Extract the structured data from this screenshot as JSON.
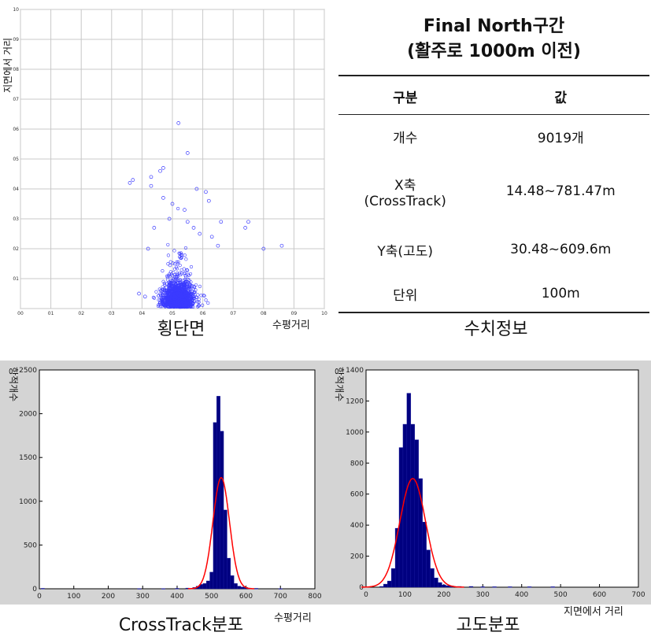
{
  "chart_data": [
    {
      "type": "scatter",
      "xlabel": "수평거리",
      "ylabel": "지면에서 거리",
      "caption": "횡단면",
      "xlim": [
        0,
        1.0
      ],
      "ylim": [
        0,
        1.0
      ],
      "xticks": [
        "00",
        "01",
        "02",
        "03",
        "04",
        "05",
        "06",
        "07",
        "08",
        "09",
        "10"
      ],
      "yticks": [
        "",
        "01",
        "02",
        "03",
        "04",
        "05",
        "06",
        "07",
        "08",
        "09",
        "10"
      ],
      "grid": true,
      "marker_color": "#3b3bff",
      "cluster": {
        "x_mean": 0.52,
        "y_mean": 0.06,
        "x_sd": 0.025,
        "y_sd": 0.035,
        "n": 1400
      },
      "outliers": [
        {
          "x": 0.52,
          "y": 0.62
        },
        {
          "x": 0.55,
          "y": 0.52
        },
        {
          "x": 0.47,
          "y": 0.47
        },
        {
          "x": 0.46,
          "y": 0.46
        },
        {
          "x": 0.43,
          "y": 0.44
        },
        {
          "x": 0.37,
          "y": 0.43
        },
        {
          "x": 0.36,
          "y": 0.42
        },
        {
          "x": 0.43,
          "y": 0.41
        },
        {
          "x": 0.58,
          "y": 0.4
        },
        {
          "x": 0.61,
          "y": 0.39
        },
        {
          "x": 0.5,
          "y": 0.35
        },
        {
          "x": 0.47,
          "y": 0.37
        },
        {
          "x": 0.54,
          "y": 0.33
        },
        {
          "x": 0.62,
          "y": 0.36
        },
        {
          "x": 0.66,
          "y": 0.29
        },
        {
          "x": 0.74,
          "y": 0.27
        },
        {
          "x": 0.75,
          "y": 0.29
        },
        {
          "x": 0.8,
          "y": 0.2
        },
        {
          "x": 0.86,
          "y": 0.21
        },
        {
          "x": 0.57,
          "y": 0.27
        },
        {
          "x": 0.59,
          "y": 0.25
        },
        {
          "x": 0.49,
          "y": 0.3
        },
        {
          "x": 0.55,
          "y": 0.29
        },
        {
          "x": 0.63,
          "y": 0.24
        },
        {
          "x": 0.65,
          "y": 0.21
        },
        {
          "x": 0.44,
          "y": 0.27
        },
        {
          "x": 0.42,
          "y": 0.2
        },
        {
          "x": 0.39,
          "y": 0.05
        },
        {
          "x": 0.41,
          "y": 0.04
        }
      ]
    },
    {
      "type": "bar",
      "caption": "CrossTrack분포",
      "xlabel": "수평거리",
      "ylabel": "항적개수",
      "xlim": [
        0,
        800
      ],
      "ylim": [
        0,
        2500
      ],
      "xticks": [
        "0",
        "100",
        "200",
        "300",
        "400",
        "500",
        "600",
        "700",
        "800"
      ],
      "yticks": [
        "0",
        "500",
        "1000",
        "1500",
        "2000",
        "2500"
      ],
      "bin_width": 10,
      "bins": [
        {
          "x": 10,
          "value": 5
        },
        {
          "x": 290,
          "value": 3
        },
        {
          "x": 360,
          "value": 3
        },
        {
          "x": 400,
          "value": 5
        },
        {
          "x": 430,
          "value": 8
        },
        {
          "x": 450,
          "value": 15
        },
        {
          "x": 460,
          "value": 30
        },
        {
          "x": 470,
          "value": 50
        },
        {
          "x": 480,
          "value": 60
        },
        {
          "x": 490,
          "value": 90
        },
        {
          "x": 500,
          "value": 190
        },
        {
          "x": 510,
          "value": 1900
        },
        {
          "x": 520,
          "value": 2200
        },
        {
          "x": 530,
          "value": 1800
        },
        {
          "x": 540,
          "value": 900
        },
        {
          "x": 550,
          "value": 350
        },
        {
          "x": 560,
          "value": 150
        },
        {
          "x": 570,
          "value": 60
        },
        {
          "x": 580,
          "value": 30
        },
        {
          "x": 590,
          "value": 20
        },
        {
          "x": 600,
          "value": 15
        },
        {
          "x": 610,
          "value": 8
        },
        {
          "x": 630,
          "value": 5
        },
        {
          "x": 700,
          "value": 3
        }
      ],
      "fit": {
        "mean": 528,
        "sd": 24,
        "peak": 1270,
        "color": "#ff0000"
      },
      "bar_color": "#000080"
    },
    {
      "type": "bar",
      "caption": "고도분포",
      "xlabel": "지면에서 거리",
      "ylabel": "항적개수",
      "xlim": [
        0,
        700
      ],
      "ylim": [
        0,
        1400
      ],
      "xticks": [
        "0",
        "100",
        "200",
        "300",
        "400",
        "500",
        "600",
        "700"
      ],
      "yticks": [
        "0",
        "200",
        "400",
        "600",
        "800",
        "1000",
        "1200",
        "1400"
      ],
      "bin_width": 10,
      "bins": [
        {
          "x": 40,
          "value": 5
        },
        {
          "x": 50,
          "value": 20
        },
        {
          "x": 60,
          "value": 40
        },
        {
          "x": 70,
          "value": 120
        },
        {
          "x": 80,
          "value": 380
        },
        {
          "x": 90,
          "value": 900
        },
        {
          "x": 100,
          "value": 1050
        },
        {
          "x": 110,
          "value": 1250
        },
        {
          "x": 120,
          "value": 1050
        },
        {
          "x": 130,
          "value": 950
        },
        {
          "x": 140,
          "value": 700
        },
        {
          "x": 150,
          "value": 420
        },
        {
          "x": 160,
          "value": 240
        },
        {
          "x": 170,
          "value": 120
        },
        {
          "x": 180,
          "value": 60
        },
        {
          "x": 190,
          "value": 30
        },
        {
          "x": 200,
          "value": 15
        },
        {
          "x": 210,
          "value": 10
        },
        {
          "x": 220,
          "value": 8
        },
        {
          "x": 240,
          "value": 5
        },
        {
          "x": 270,
          "value": 5
        },
        {
          "x": 300,
          "value": 3
        },
        {
          "x": 330,
          "value": 3
        },
        {
          "x": 370,
          "value": 3
        },
        {
          "x": 420,
          "value": 3
        },
        {
          "x": 480,
          "value": 3
        }
      ],
      "fit": {
        "mean": 120,
        "sd": 33,
        "peak": 700,
        "color": "#ff0000"
      },
      "bar_color": "#000080"
    }
  ],
  "info": {
    "title_line1": "Final North구간",
    "title_line2": "(활주로 1000m 이전)",
    "header": {
      "col1": "구분",
      "col2": "값"
    },
    "rows": [
      {
        "label": "개수",
        "label2": "",
        "value": "9019개"
      },
      {
        "label": "X축",
        "label2": "(CrossTrack)",
        "value": "14.48~781.47m"
      },
      {
        "label": "Y축(고도)",
        "label2": "",
        "value": "30.48~609.6m"
      },
      {
        "label": "단위",
        "label2": "",
        "value": "100m"
      }
    ],
    "caption": "수치정보"
  }
}
